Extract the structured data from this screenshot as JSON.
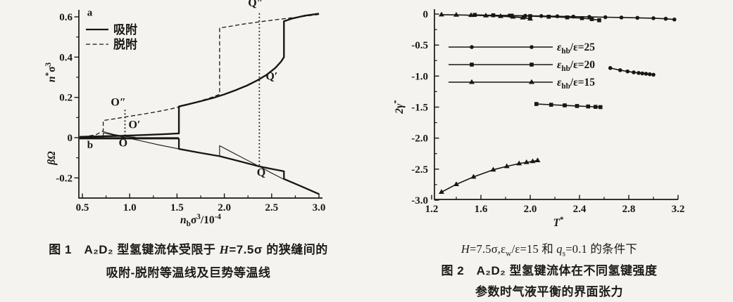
{
  "colors": {
    "ink": "#181714",
    "paper": "#f4f3ef"
  },
  "fig1": {
    "caption": {
      "seg1": "图 1　A₂D₂ 型氢键流体受限于 ",
      "h": "H",
      "seg2": "=7.5σ 的狭缝间的",
      "line2": "吸附-脱附等温线及巨势等温线"
    }
  },
  "fig2": {
    "caption": {
      "h": "H",
      "s1": "=7.5σ,ε",
      "w": "w",
      "s2": "/ε=15 和 ",
      "q": "q",
      "s": "s",
      "s3": "=0.1 的条件下",
      "line2": "图 2　A₂D₂ 型氢键流体在不同氢键强度",
      "line3": "参数时气液平衡的界面张力"
    }
  },
  "chart_data": [
    {
      "id": "fig1",
      "type": "line",
      "title": "吸附-脱附等温线及巨势等温线",
      "panel_labels": [
        "a",
        "b"
      ],
      "xlabel": "n_b σ³ / 10⁻⁴",
      "ylabel_top": "n*σ³",
      "ylabel_bottom": "βΩ",
      "xlim": [
        0.5,
        3.0
      ],
      "ylim": [
        -0.3,
        0.64
      ],
      "xticks": [
        0.5,
        1.0,
        1.5,
        2.0,
        2.5,
        3.0
      ],
      "xtick_labels": [
        "0.5",
        "1.0",
        "1.5",
        "2.0",
        "2.5",
        "3.0"
      ],
      "yticks": [
        0.6,
        0.4,
        0.2,
        0,
        -0.2
      ],
      "ytick_labels": [
        "0.6",
        "0.4",
        "0.2",
        "0",
        "-0.2"
      ],
      "grid": false,
      "legend_position": "upper-left",
      "legend": [
        {
          "label": "吸附",
          "style": "solid",
          "width": 2.3
        },
        {
          "label": "脱附",
          "style": "dashed",
          "width": 1.3
        }
      ],
      "titles": [
        {
          "parts": [
            [
              "n",
              "i"
            ],
            [
              "b",
              "sub"
            ],
            [
              "σ",
              ""
            ],
            [
              "3",
              "sup"
            ],
            [
              "/10",
              ""
            ],
            [
              "-4",
              "sup"
            ]
          ]
        },
        {
          "parts": [
            [
              "n",
              "i"
            ],
            [
              "*",
              "sup"
            ],
            [
              "σ",
              ""
            ],
            [
              "3",
              "sup"
            ]
          ]
        },
        {
          "parts": [
            [
              "βΩ",
              "i"
            ]
          ]
        }
      ],
      "series": [
        {
          "name": "adsorption-isotherm",
          "width": 2.4,
          "dash": null,
          "points": [
            [
              0.47,
              0.004
            ],
            [
              0.9,
              0.009
            ],
            [
              1.2,
              0.014
            ],
            [
              1.4,
              0.018
            ],
            [
              1.52,
              0.021
            ],
            [
              1.52,
              0.155
            ],
            [
              1.62,
              0.166
            ],
            [
              1.75,
              0.181
            ],
            [
              1.88,
              0.197
            ],
            [
              2.0,
              0.215
            ],
            [
              2.12,
              0.236
            ],
            [
              2.24,
              0.259
            ],
            [
              2.35,
              0.285
            ],
            [
              2.45,
              0.313
            ],
            [
              2.54,
              0.347
            ],
            [
              2.6,
              0.378
            ],
            [
              2.63,
              0.4
            ],
            [
              2.63,
              0.578
            ],
            [
              2.72,
              0.592
            ],
            [
              2.85,
              0.606
            ],
            [
              3.0,
              0.616
            ]
          ]
        },
        {
          "name": "desorption-isotherm",
          "width": 1.3,
          "dash": "6,3.5",
          "points": [
            [
              3.0,
              0.612
            ],
            [
              2.8,
              0.6
            ],
            [
              2.6,
              0.589
            ],
            [
              2.4,
              0.577
            ],
            [
              2.2,
              0.564
            ],
            [
              2.05,
              0.552
            ],
            [
              1.95,
              0.545
            ],
            [
              1.95,
              0.215
            ],
            [
              1.84,
              0.196
            ],
            [
              1.7,
              0.176
            ],
            [
              1.56,
              0.157
            ],
            [
              1.42,
              0.141
            ],
            [
              1.28,
              0.128
            ],
            [
              1.12,
              0.115
            ],
            [
              0.98,
              0.105
            ],
            [
              0.86,
              0.095
            ],
            [
              0.76,
              0.088
            ],
            [
              0.72,
              0.085
            ],
            [
              0.72,
              0.033
            ],
            [
              0.64,
              0.014
            ],
            [
              0.56,
              0.008
            ],
            [
              0.5,
              0.005
            ]
          ]
        },
        {
          "name": "metastable-gas-branch",
          "width": 1.0,
          "dash": null,
          "points": [
            [
              0.72,
              0.03
            ],
            [
              0.83,
              0.016
            ],
            [
              0.95,
              0.006
            ],
            [
              1.06,
              0.002
            ]
          ]
        },
        {
          "name": "grand-potential-gas",
          "width": 3.0,
          "dash": null,
          "points": [
            [
              0.47,
              -0.003
            ],
            [
              1.52,
              -0.003
            ]
          ]
        },
        {
          "name": "grand-potential-liquid-left",
          "width": 1.1,
          "dash": null,
          "points": [
            [
              0.72,
              0.001
            ],
            [
              0.72,
              0.024
            ],
            [
              0.85,
              0.011
            ],
            [
              0.95,
              0.001
            ],
            [
              1.1,
              -0.014
            ],
            [
              1.3,
              -0.035
            ],
            [
              1.52,
              -0.056
            ]
          ]
        },
        {
          "name": "grand-potential-main",
          "width": 2.3,
          "dash": null,
          "points": [
            [
              1.52,
              -0.003
            ],
            [
              1.52,
              -0.056
            ],
            [
              1.75,
              -0.076
            ],
            [
              1.95,
              -0.092
            ],
            [
              2.15,
              -0.116
            ],
            [
              2.37,
              -0.143
            ],
            [
              2.52,
              -0.157
            ],
            [
              2.63,
              -0.167
            ],
            [
              2.63,
              -0.205
            ],
            [
              2.8,
              -0.239
            ],
            [
              3.0,
              -0.28
            ]
          ]
        },
        {
          "name": "grand-potential-spike",
          "width": 1.1,
          "dash": null,
          "points": [
            [
              1.95,
              -0.092
            ],
            [
              1.95,
              -0.04
            ],
            [
              2.1,
              -0.077
            ],
            [
              2.25,
              -0.114
            ],
            [
              2.37,
              -0.143
            ],
            [
              2.5,
              -0.176
            ],
            [
              2.63,
              -0.207
            ]
          ]
        }
      ],
      "guides": [
        {
          "x": 0.95,
          "v1": 0.138,
          "v2": 0.0
        },
        {
          "x": 2.37,
          "v1": 0.618,
          "v2": -0.143
        }
      ],
      "annotations": [
        {
          "t": "a",
          "x": 0.55,
          "v": 0.605,
          "anchor": "start",
          "fs": 15
        },
        {
          "t": "b",
          "x": 0.55,
          "v": -0.052,
          "anchor": "start",
          "fs": 15
        },
        {
          "t": "O″",
          "x": 0.88,
          "v": 0.158,
          "anchor": "middle",
          "fs": 16
        },
        {
          "t": "O′",
          "x": 1.05,
          "v": 0.047,
          "anchor": "middle",
          "fs": 16
        },
        {
          "t": "O",
          "x": 0.93,
          "v": -0.044,
          "anchor": "middle",
          "fs": 16
        },
        {
          "t": "Q″",
          "x": 2.33,
          "v": 0.652,
          "anchor": "middle",
          "fs": 16
        },
        {
          "t": "Q′",
          "x": 2.5,
          "v": 0.287,
          "anchor": "middle",
          "fs": 16
        },
        {
          "t": "Q",
          "x": 2.39,
          "v": -0.19,
          "anchor": "middle",
          "fs": 16
        }
      ]
    },
    {
      "id": "fig2",
      "type": "line",
      "title": "不同氢键强度参数时气液平衡的界面张力",
      "xlabel": "T*",
      "ylabel": "2γ*",
      "xlim": [
        1.2,
        3.2
      ],
      "ylim": [
        -3.0,
        0.0
      ],
      "xticks": [
        1.2,
        1.6,
        2.0,
        2.4,
        2.8,
        3.2
      ],
      "xtick_labels": [
        "1.2",
        "1.6",
        "2.0",
        "2.4",
        "2.8",
        "3.2"
      ],
      "yticks": [
        0,
        -0.5,
        -1.0,
        -1.5,
        -2.0,
        -2.5,
        -3.0
      ],
      "ytick_labels": [
        "0",
        "-0.5",
        "-1.0",
        "-1.5",
        "-2.0",
        "-2.5",
        "-3.0"
      ],
      "grid": false,
      "legend_position": "upper-left-inside",
      "titles": [
        {
          "parts": [
            [
              "T",
              "i"
            ],
            [
              "*",
              "sup"
            ]
          ]
        },
        {
          "parts": [
            [
              "2γ",
              "i"
            ],
            [
              "*",
              "sup"
            ]
          ]
        }
      ],
      "legend": [
        {
          "parts": [
            [
              "ε",
              "i"
            ],
            [
              "hb",
              "sub"
            ],
            [
              "/ε=25",
              ""
            ]
          ],
          "marker": "circle"
        },
        {
          "parts": [
            [
              "ε",
              "i"
            ],
            [
              "hb",
              "sub"
            ],
            [
              "/ε=20",
              ""
            ]
          ],
          "marker": "square"
        },
        {
          "parts": [
            [
              "ε",
              "i"
            ],
            [
              "hb",
              "sub"
            ],
            [
              "/ε=15",
              ""
            ]
          ],
          "marker": "triangle"
        }
      ],
      "series": [
        {
          "name": "eps_hb/eps=15",
          "marker": "triangle",
          "width": 1.6,
          "branches": [
            {
              "name": "vapor",
              "x": [
                1.28,
                1.4,
                1.52,
                1.64,
                1.76,
                1.86,
                1.94,
                2.0
              ],
              "y": [
                -0.01,
                -0.014,
                -0.019,
                -0.026,
                -0.035,
                -0.046,
                -0.059,
                -0.076
              ]
            },
            {
              "name": "liquid",
              "x": [
                1.28,
                1.4,
                1.54,
                1.7,
                1.81,
                1.91,
                1.97,
                2.02,
                2.06
              ],
              "y": [
                -2.87,
                -2.745,
                -2.625,
                -2.51,
                -2.455,
                -2.41,
                -2.39,
                -2.375,
                -2.36
              ]
            }
          ]
        },
        {
          "name": "eps_hb/eps=20",
          "marker": "square",
          "width": 1.6,
          "branches": [
            {
              "name": "vapor",
              "x": [
                1.55,
                1.7,
                1.85,
                2.0,
                2.15,
                2.3,
                2.42,
                2.5,
                2.56
              ],
              "y": [
                -0.014,
                -0.02,
                -0.026,
                -0.034,
                -0.043,
                -0.054,
                -0.066,
                -0.082,
                -0.1
              ]
            },
            {
              "name": "liquid",
              "x": [
                2.05,
                2.17,
                2.28,
                2.38,
                2.47,
                2.53,
                2.57
              ],
              "y": [
                -1.45,
                -1.462,
                -1.472,
                -1.482,
                -1.49,
                -1.496,
                -1.5
              ]
            }
          ]
        },
        {
          "name": "eps_hb/eps=25",
          "marker": "circle",
          "width": 1.6,
          "branches": [
            {
              "name": "vapor",
              "x": [
                1.7,
                1.83,
                1.96,
                2.09,
                2.22,
                2.35,
                2.48,
                2.61,
                2.74,
                2.87,
                3.0,
                3.1,
                3.17
              ],
              "y": [
                -0.02,
                -0.024,
                -0.028,
                -0.032,
                -0.036,
                -0.041,
                -0.046,
                -0.051,
                -0.056,
                -0.061,
                -0.067,
                -0.076,
                -0.088
              ]
            },
            {
              "name": "liquid",
              "x": [
                2.65,
                2.73,
                2.79,
                2.84,
                2.88,
                2.91,
                2.94,
                2.97,
                3.0
              ],
              "y": [
                -0.87,
                -0.905,
                -0.925,
                -0.94,
                -0.95,
                -0.957,
                -0.963,
                -0.97,
                -0.978
              ]
            }
          ]
        }
      ],
      "guides": [],
      "annotations": []
    }
  ]
}
